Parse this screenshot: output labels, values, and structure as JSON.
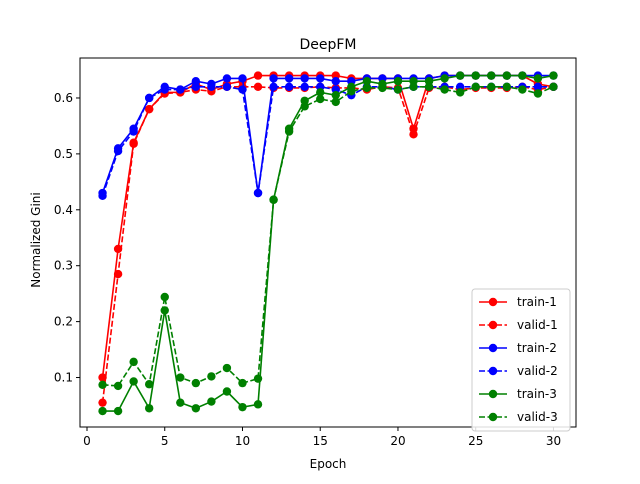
{
  "chart_data": {
    "type": "line",
    "title": "DeepFM",
    "xlabel": "Epoch",
    "ylabel": "Normalized Gini",
    "xlim": [
      -0.45,
      31.45
    ],
    "ylim": [
      0.0115,
      0.6715
    ],
    "xticks": [
      0,
      5,
      10,
      15,
      20,
      25,
      30
    ],
    "yticks": [
      0.1,
      0.2,
      0.3,
      0.4,
      0.5,
      0.6
    ],
    "ytick_labels": [
      "0.1",
      "0.2",
      "0.3",
      "0.4",
      "0.5",
      "0.6"
    ],
    "grid": false,
    "legend_position": "bottom-right",
    "x": [
      1,
      2,
      3,
      4,
      5,
      6,
      7,
      8,
      9,
      10,
      11,
      12,
      13,
      14,
      15,
      16,
      17,
      18,
      19,
      20,
      21,
      22,
      23,
      24,
      25,
      26,
      27,
      28,
      29,
      30
    ],
    "series": [
      {
        "name": "train-1",
        "color": "#ff0000",
        "linestyle": "solid",
        "values": [
          0.1,
          0.33,
          0.52,
          0.58,
          0.61,
          0.61,
          0.625,
          0.615,
          0.625,
          0.63,
          0.64,
          0.64,
          0.64,
          0.64,
          0.64,
          0.64,
          0.635,
          0.635,
          0.635,
          0.635,
          0.545,
          0.635,
          0.64,
          0.64,
          0.64,
          0.64,
          0.64,
          0.64,
          0.625,
          0.62
        ]
      },
      {
        "name": "valid-1",
        "color": "#ff0000",
        "linestyle": "dashed",
        "values": [
          0.055,
          0.285,
          0.518,
          0.58,
          0.608,
          0.61,
          0.615,
          0.612,
          0.62,
          0.62,
          0.62,
          0.618,
          0.618,
          0.618,
          0.62,
          0.618,
          0.618,
          0.615,
          0.62,
          0.618,
          0.535,
          0.618,
          0.62,
          0.615,
          0.618,
          0.618,
          0.618,
          0.62,
          0.615,
          0.62
        ]
      },
      {
        "name": "train-2",
        "color": "#0000ff",
        "linestyle": "solid",
        "values": [
          0.43,
          0.51,
          0.545,
          0.6,
          0.62,
          0.615,
          0.63,
          0.625,
          0.635,
          0.635,
          0.43,
          0.635,
          0.635,
          0.635,
          0.635,
          0.63,
          0.63,
          0.635,
          0.635,
          0.635,
          0.635,
          0.635,
          0.64,
          0.64,
          0.64,
          0.64,
          0.64,
          0.64,
          0.64,
          0.64
        ]
      },
      {
        "name": "valid-2",
        "color": "#0000ff",
        "linestyle": "dashed",
        "values": [
          0.425,
          0.505,
          0.54,
          0.6,
          0.615,
          0.615,
          0.62,
          0.62,
          0.62,
          0.615,
          0.43,
          0.62,
          0.62,
          0.62,
          0.62,
          0.615,
          0.605,
          0.62,
          0.62,
          0.615,
          0.62,
          0.62,
          0.62,
          0.62,
          0.62,
          0.62,
          0.62,
          0.62,
          0.62,
          0.62
        ]
      },
      {
        "name": "train-3",
        "color": "#008000",
        "linestyle": "solid",
        "values": [
          0.04,
          0.04,
          0.093,
          0.045,
          0.22,
          0.055,
          0.045,
          0.057,
          0.075,
          0.047,
          0.052,
          0.418,
          0.545,
          0.595,
          0.61,
          0.605,
          0.62,
          0.63,
          0.625,
          0.63,
          0.63,
          0.63,
          0.635,
          0.64,
          0.64,
          0.64,
          0.64,
          0.64,
          0.635,
          0.64
        ]
      },
      {
        "name": "valid-3",
        "color": "#008000",
        "linestyle": "dashed",
        "values": [
          0.087,
          0.085,
          0.128,
          0.088,
          0.244,
          0.1,
          0.09,
          0.102,
          0.117,
          0.09,
          0.098,
          0.418,
          0.54,
          0.585,
          0.598,
          0.593,
          0.612,
          0.618,
          0.618,
          0.615,
          0.62,
          0.62,
          0.615,
          0.61,
          0.62,
          0.62,
          0.62,
          0.615,
          0.608,
          0.62
        ]
      }
    ]
  }
}
